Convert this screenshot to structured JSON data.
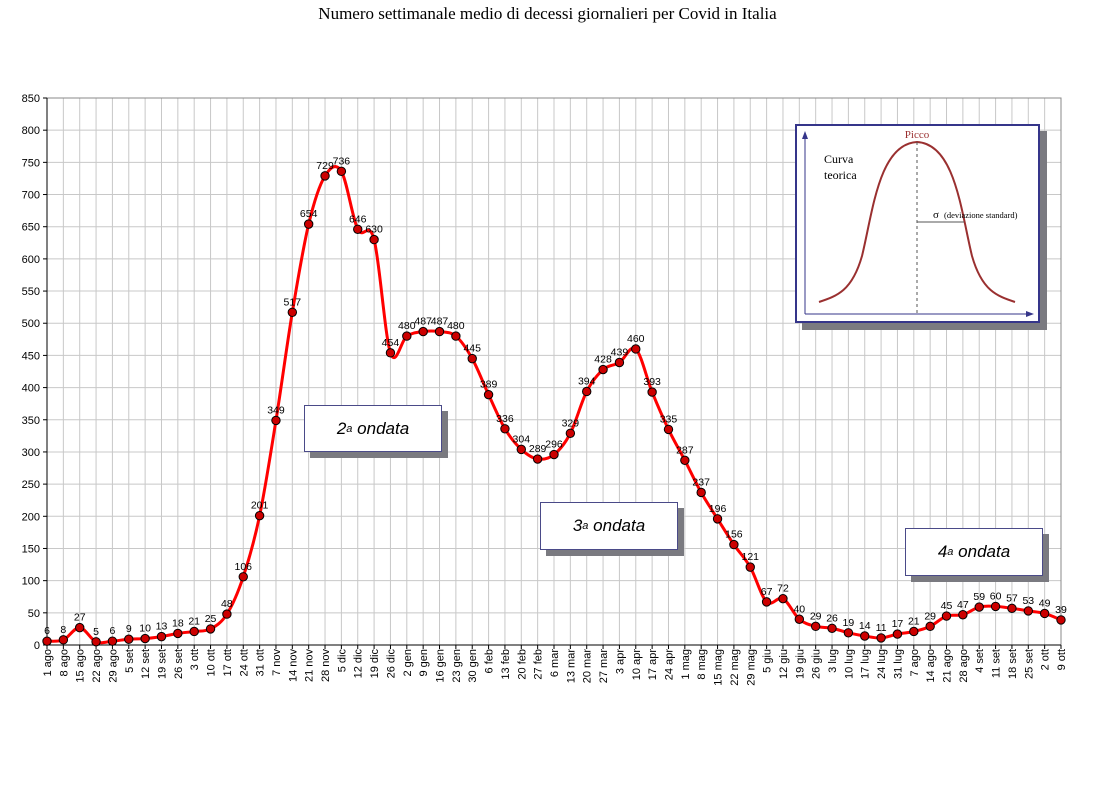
{
  "chart_data": {
    "type": "line",
    "title": "Numero settimanale medio di decessi giornalieri per Covid in Italia",
    "xlabel": "",
    "ylabel": "",
    "ylim": [
      0,
      850
    ],
    "yticks": [
      0,
      50,
      100,
      150,
      200,
      250,
      300,
      350,
      400,
      450,
      500,
      550,
      600,
      650,
      700,
      750,
      800,
      850
    ],
    "grid": true,
    "legend": "none",
    "line_color": "#ff0000",
    "marker_color": "#cc0000",
    "categories": [
      "1 ago",
      "8 ago",
      "15 ago",
      "22 ago",
      "29 ago",
      "5 set",
      "12 set",
      "19 set",
      "26 set",
      "3 ott",
      "10 ott",
      "17 ott",
      "24 ott",
      "31 ott",
      "7 nov",
      "14 nov",
      "21 nov",
      "28 nov",
      "5 dic",
      "12 dic",
      "19 dic",
      "26 dic",
      "2 gen",
      "9 gen",
      "16 gen",
      "23 gen",
      "30 gen",
      "6 feb",
      "13 feb",
      "20 feb",
      "27 feb",
      "6 mar",
      "13 mar",
      "20 mar",
      "27 mar",
      "3 apr",
      "10 apr",
      "17 apr",
      "24 apr",
      "1 mag",
      "8 mag",
      "15 mag",
      "22 mag",
      "29 mag",
      "5 giu",
      "12 giu",
      "19 giu",
      "26 giu",
      "3 lug",
      "10 lug",
      "17 lug",
      "24 lug",
      "31 lug",
      "7 ago",
      "14 ago",
      "21 ago",
      "28 ago",
      "4 set",
      "11 set",
      "18 set",
      "25 set",
      "2 ott",
      "9 ott"
    ],
    "values": [
      6,
      8,
      27,
      5,
      6,
      9,
      10,
      13,
      18,
      21,
      25,
      48,
      106,
      201,
      349,
      517,
      654,
      729,
      736,
      646,
      630,
      454,
      480,
      487,
      487,
      480,
      445,
      389,
      336,
      304,
      289,
      296,
      329,
      394,
      428,
      439,
      460,
      393,
      335,
      287,
      237,
      196,
      156,
      121,
      67,
      72,
      40,
      29,
      26,
      19,
      14,
      11,
      17,
      21,
      29,
      45,
      47,
      59,
      60,
      57,
      53,
      49,
      39
    ],
    "annotations": [
      {
        "ord": "2",
        "sup": "a",
        "text": "ondata"
      },
      {
        "ord": "3",
        "sup": "a",
        "text": "ondata"
      },
      {
        "ord": "4",
        "sup": "a",
        "text": "ondata"
      }
    ],
    "inset": {
      "peak_label": "Picco",
      "curve_label_1": "Curva",
      "curve_label_2": "teorica",
      "sigma_label": "σ",
      "sigma_desc": "(deviazione standard)"
    }
  }
}
